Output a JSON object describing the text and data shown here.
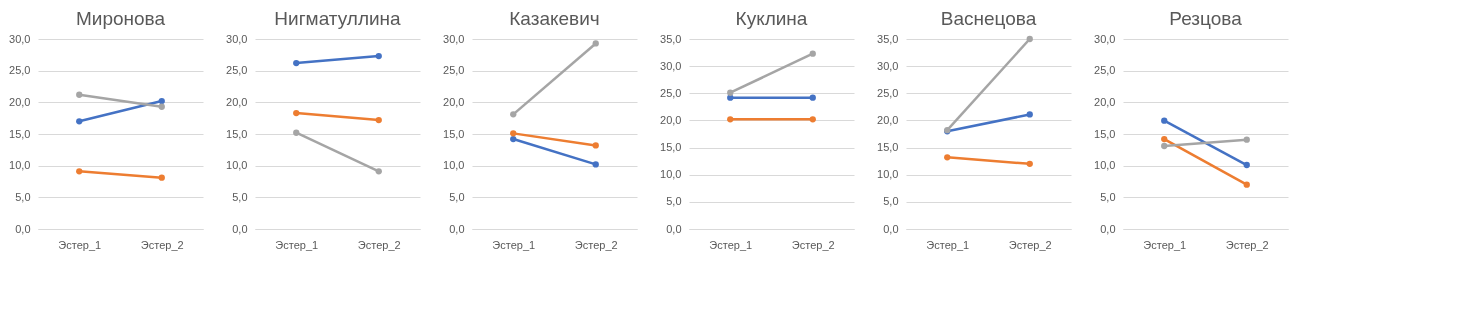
{
  "chart_data": [
    {
      "type": "line",
      "title": "Миронова",
      "categories": [
        "Эстер_1",
        "Эстер_2"
      ],
      "marker": "circle",
      "line_style": "solid",
      "grid": "y",
      "legend": false,
      "ylim": [
        0,
        30
      ],
      "yticks": [
        {
          "value": 0,
          "label": "0,0"
        },
        {
          "value": 5,
          "label": "5,0"
        },
        {
          "value": 10,
          "label": "10,0"
        },
        {
          "value": 15,
          "label": "15,0"
        },
        {
          "value": 20,
          "label": "20,0"
        },
        {
          "value": 25,
          "label": "25,0"
        },
        {
          "value": 30,
          "label": "30,0"
        }
      ],
      "series": [
        {
          "color": "#4472c4",
          "values": [
            17.0,
            20.2
          ]
        },
        {
          "color": "#ed7d31",
          "values": [
            9.1,
            8.1
          ]
        },
        {
          "color": "#a5a5a5",
          "values": [
            21.2,
            19.3
          ]
        }
      ]
    },
    {
      "type": "line",
      "title": "Нигматуллина",
      "categories": [
        "Эстер_1",
        "Эстер_2"
      ],
      "marker": "circle",
      "line_style": "solid",
      "grid": "y",
      "legend": false,
      "ylim": [
        0,
        30
      ],
      "yticks": [
        {
          "value": 0,
          "label": "0,0"
        },
        {
          "value": 5,
          "label": "5,0"
        },
        {
          "value": 10,
          "label": "10,0"
        },
        {
          "value": 15,
          "label": "15,0"
        },
        {
          "value": 20,
          "label": "20,0"
        },
        {
          "value": 25,
          "label": "25,0"
        },
        {
          "value": 30,
          "label": "30,0"
        }
      ],
      "series": [
        {
          "color": "#4472c4",
          "values": [
            26.2,
            27.3
          ]
        },
        {
          "color": "#ed7d31",
          "values": [
            18.3,
            17.2
          ]
        },
        {
          "color": "#a5a5a5",
          "values": [
            15.2,
            9.1
          ]
        }
      ]
    },
    {
      "type": "line",
      "title": "Казакевич",
      "categories": [
        "Эстер_1",
        "Эстер_2"
      ],
      "marker": "circle",
      "line_style": "solid",
      "grid": "y",
      "legend": false,
      "ylim": [
        0,
        30
      ],
      "yticks": [
        {
          "value": 0,
          "label": "0,0"
        },
        {
          "value": 5,
          "label": "5,0"
        },
        {
          "value": 10,
          "label": "10,0"
        },
        {
          "value": 15,
          "label": "15,0"
        },
        {
          "value": 20,
          "label": "20,0"
        },
        {
          "value": 25,
          "label": "25,0"
        },
        {
          "value": 30,
          "label": "30,0"
        }
      ],
      "series": [
        {
          "color": "#4472c4",
          "values": [
            14.2,
            10.2
          ]
        },
        {
          "color": "#ed7d31",
          "values": [
            15.1,
            13.2
          ]
        },
        {
          "color": "#a5a5a5",
          "values": [
            18.1,
            29.3
          ]
        }
      ]
    },
    {
      "type": "line",
      "title": "Куклина",
      "categories": [
        "Эстер_1",
        "Эстер_2"
      ],
      "marker": "circle",
      "line_style": "solid",
      "grid": "y",
      "legend": false,
      "ylim": [
        0,
        35
      ],
      "yticks": [
        {
          "value": 0,
          "label": "0,0"
        },
        {
          "value": 5,
          "label": "5,0"
        },
        {
          "value": 10,
          "label": "10,0"
        },
        {
          "value": 15,
          "label": "15,0"
        },
        {
          "value": 20,
          "label": "20,0"
        },
        {
          "value": 25,
          "label": "25,0"
        },
        {
          "value": 30,
          "label": "30,0"
        },
        {
          "value": 35,
          "label": "35,0"
        }
      ],
      "series": [
        {
          "color": "#4472c4",
          "values": [
            24.2,
            24.2
          ]
        },
        {
          "color": "#ed7d31",
          "values": [
            20.2,
            20.2
          ]
        },
        {
          "color": "#a5a5a5",
          "values": [
            25.1,
            32.3
          ]
        }
      ]
    },
    {
      "type": "line",
      "title": "Васнецова",
      "categories": [
        "Эстер_1",
        "Эстер_2"
      ],
      "marker": "circle",
      "line_style": "solid",
      "grid": "y",
      "legend": false,
      "ylim": [
        0,
        35
      ],
      "yticks": [
        {
          "value": 0,
          "label": "0,0"
        },
        {
          "value": 5,
          "label": "5,0"
        },
        {
          "value": 10,
          "label": "10,0"
        },
        {
          "value": 15,
          "label": "15,0"
        },
        {
          "value": 20,
          "label": "20,0"
        },
        {
          "value": 25,
          "label": "25,0"
        },
        {
          "value": 30,
          "label": "30,0"
        },
        {
          "value": 35,
          "label": "35,0"
        }
      ],
      "series": [
        {
          "color": "#4472c4",
          "values": [
            18.0,
            21.1
          ]
        },
        {
          "color": "#ed7d31",
          "values": [
            13.2,
            12.0
          ]
        },
        {
          "color": "#a5a5a5",
          "values": [
            18.2,
            35.0
          ]
        }
      ]
    },
    {
      "type": "line",
      "title": "Резцова",
      "categories": [
        "Эстер_1",
        "Эстер_2"
      ],
      "marker": "circle",
      "line_style": "solid",
      "grid": "y",
      "legend": false,
      "ylim": [
        0,
        30
      ],
      "yticks": [
        {
          "value": 0,
          "label": "0,0"
        },
        {
          "value": 5,
          "label": "5,0"
        },
        {
          "value": 10,
          "label": "10,0"
        },
        {
          "value": 15,
          "label": "15,0"
        },
        {
          "value": 20,
          "label": "20,0"
        },
        {
          "value": 25,
          "label": "25,0"
        },
        {
          "value": 30,
          "label": "30,0"
        }
      ],
      "series": [
        {
          "color": "#4472c4",
          "values": [
            17.1,
            10.1
          ]
        },
        {
          "color": "#ed7d31",
          "values": [
            14.2,
            7.0
          ]
        },
        {
          "color": "#a5a5a5",
          "values": [
            13.1,
            14.1
          ]
        }
      ]
    }
  ]
}
